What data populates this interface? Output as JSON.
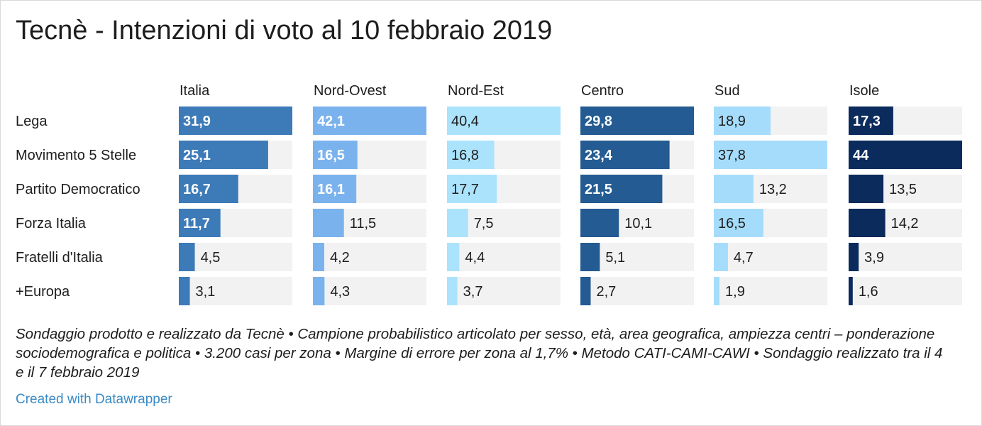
{
  "title": "Tecnè - Intenzioni di voto al 10 febbraio 2019",
  "notes": "Sondaggio prodotto e realizzato da Tecnè • Campione probabilistico articolato per sesso, età, area geografica, ampiezza centri – ponderazione sociodemografica e politica • 3.200 casi per zona • Margine di errore per zona al 1,7% • Metodo CATI-CAMI-CAWI • Sondaggio realizzato tra il 4 e il 7 febbraio 2019",
  "credit": "Created with Datawrapper",
  "chart_data": {
    "type": "bar",
    "orientation": "horizontal",
    "layout": "small-multiples",
    "categories": [
      "Lega",
      "Movimento 5 Stelle",
      "Partito Democratico",
      "Forza Italia",
      "Fratelli d'Italia",
      "+Europa"
    ],
    "value_labels": "comma-decimal",
    "series": [
      {
        "name": "Italia",
        "color": "#3d7ab8",
        "values": [
          31.9,
          25.1,
          16.7,
          11.7,
          4.5,
          3.1
        ],
        "labels": [
          "31,9",
          "25,1",
          "16,7",
          "11,7",
          "4,5",
          "3,1"
        ],
        "max": 31.9
      },
      {
        "name": "Nord-Ovest",
        "color": "#7ab2ee",
        "values": [
          42.1,
          16.5,
          16.1,
          11.5,
          4.2,
          4.3
        ],
        "labels": [
          "42,1",
          "16,5",
          "16,1",
          "11,5",
          "4,2",
          "4,3"
        ],
        "max": 42.1
      },
      {
        "name": "Nord-Est",
        "color": "#abe3fc",
        "values": [
          40.4,
          16.8,
          17.7,
          7.5,
          4.4,
          3.7
        ],
        "labels": [
          "40,4",
          "16,8",
          "17,7",
          "7,5",
          "4,4",
          "3,7"
        ],
        "max": 40.4
      },
      {
        "name": "Centro",
        "color": "#245b92",
        "values": [
          29.8,
          23.4,
          21.5,
          10.1,
          5.1,
          2.7
        ],
        "labels": [
          "29,8",
          "23,4",
          "21,5",
          "10,1",
          "5,1",
          "2,7"
        ],
        "max": 29.8
      },
      {
        "name": "Sud",
        "color": "#a5dcfb",
        "values": [
          18.9,
          37.8,
          13.2,
          16.5,
          4.7,
          1.9
        ],
        "labels": [
          "18,9",
          "37,8",
          "13,2",
          "16,5",
          "4,7",
          "1,9"
        ],
        "max": 37.8
      },
      {
        "name": "Isole",
        "color": "#0b2b5c",
        "values": [
          17.3,
          44,
          13.5,
          14.2,
          3.9,
          1.6
        ],
        "labels": [
          "17,3",
          "44",
          "13,5",
          "14,2",
          "3,9",
          "1,6"
        ],
        "max": 44
      }
    ],
    "background_bar_color": "#f2f2f2"
  }
}
